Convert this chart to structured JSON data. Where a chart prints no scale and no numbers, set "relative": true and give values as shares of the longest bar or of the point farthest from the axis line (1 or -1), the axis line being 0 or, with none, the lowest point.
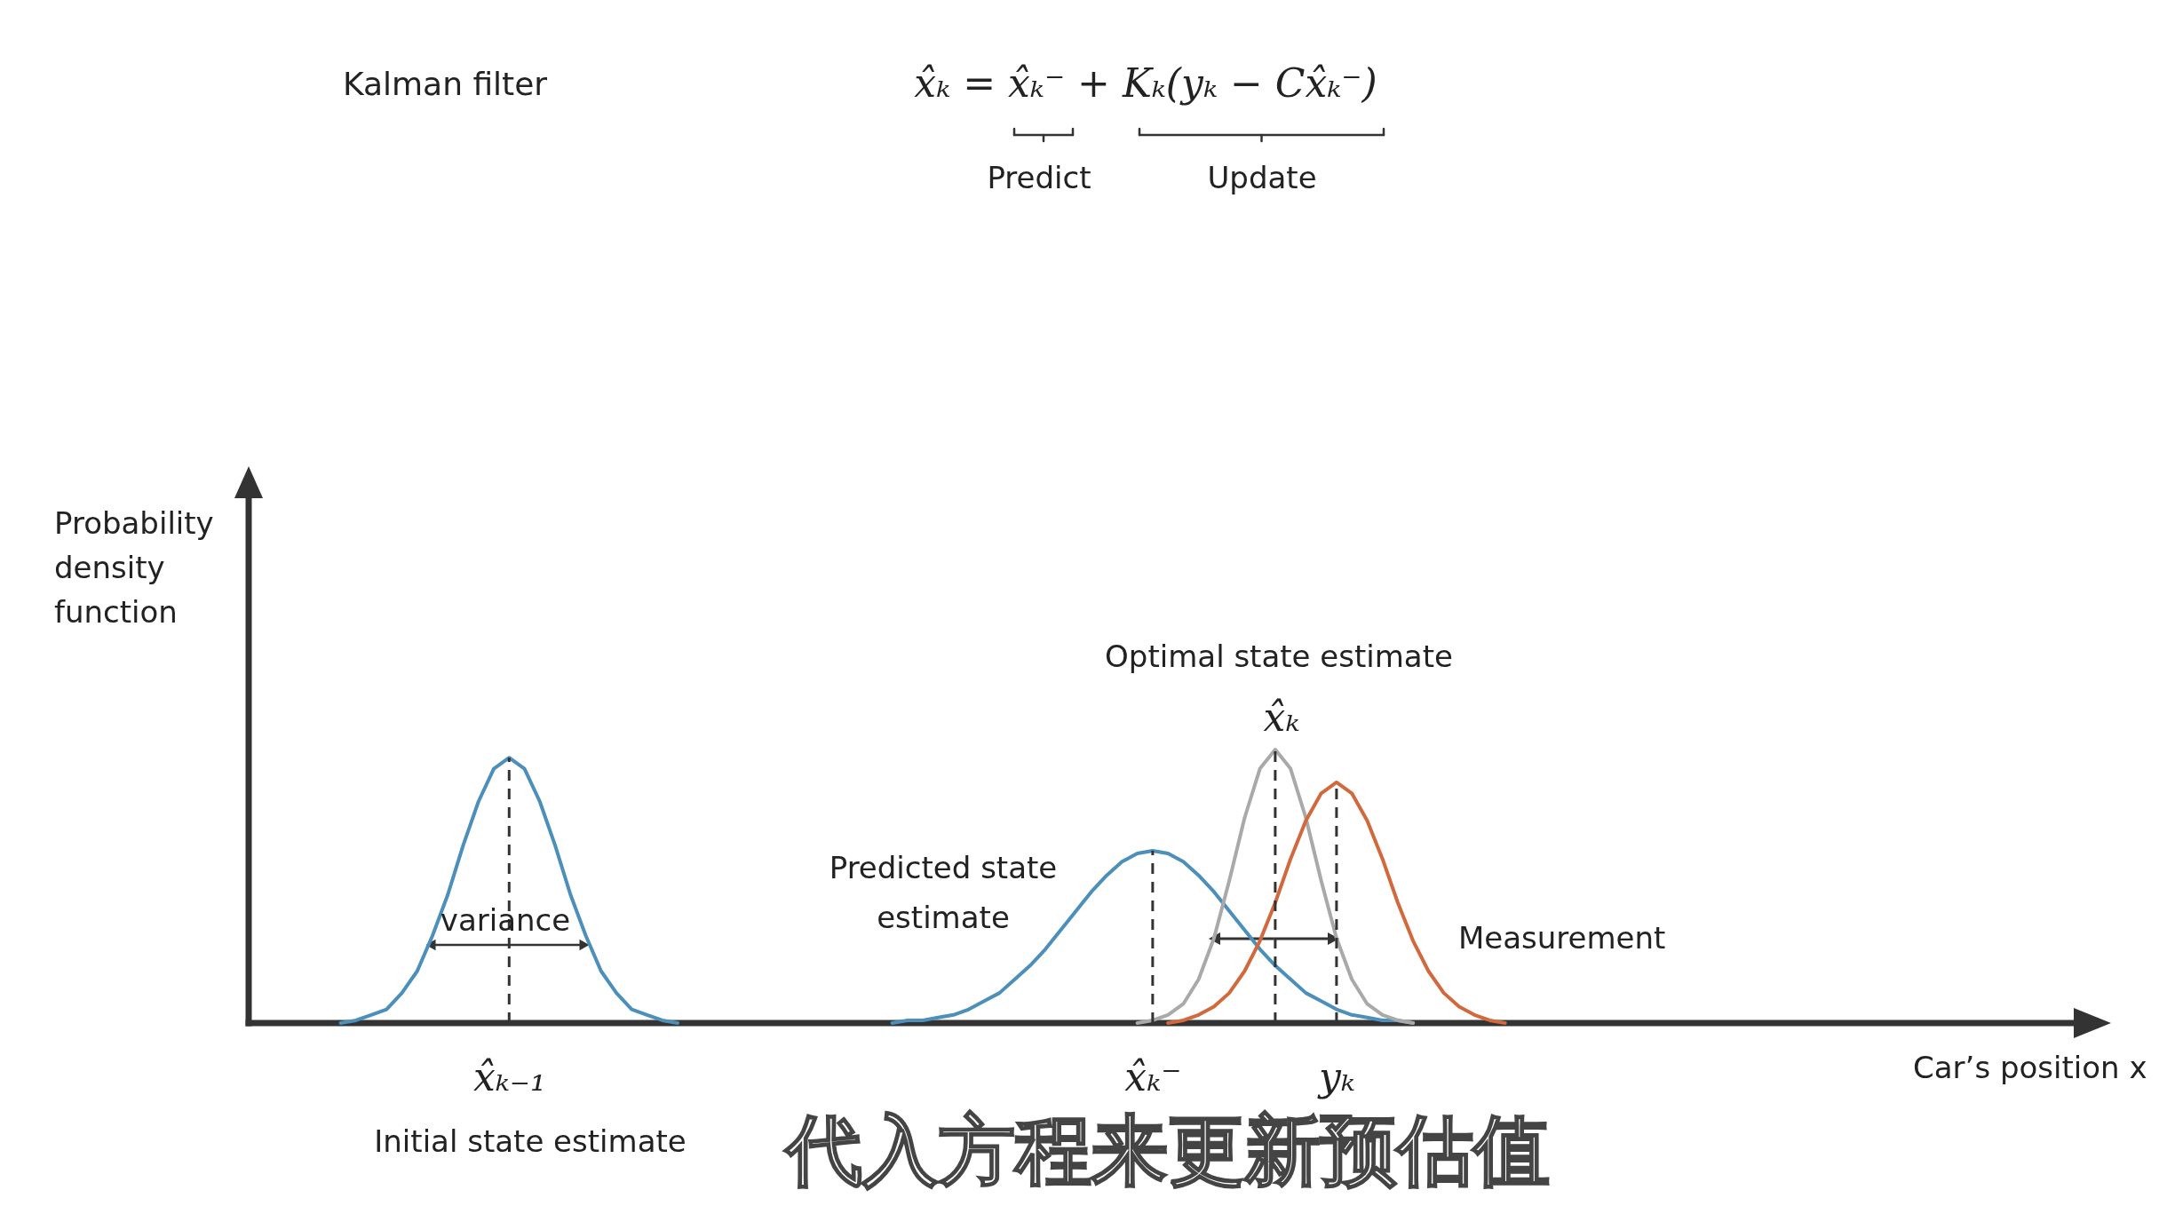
{
  "chart_data": {
    "type": "line",
    "title": "Kalman filter",
    "xlabel": "Car’s position x",
    "ylabel": "Probability density function",
    "relative": true,
    "tick_labels": "x",
    "categories": [
      null,
      null,
      null,
      null,
      null,
      null,
      null,
      null,
      null,
      null,
      null,
      null,
      null,
      null,
      null,
      null,
      null,
      "x̂ₖ₋₁",
      null,
      null,
      null,
      null,
      null,
      null,
      null,
      null,
      null,
      null,
      null,
      null,
      null,
      null,
      null,
      null,
      null,
      null,
      null,
      null,
      null,
      null,
      null,
      null,
      null,
      null,
      null,
      null,
      null,
      null,
      null,
      null,
      null,
      null,
      null,
      null,
      null,
      null,
      null,
      null,
      null,
      "x̂ₖ⁻",
      null,
      null,
      null,
      null,
      null,
      null,
      null,
      null,
      null,
      null,
      null,
      "yₖ",
      null,
      null,
      null,
      null,
      null,
      null,
      null,
      null,
      null,
      null,
      null,
      null,
      null,
      null,
      null,
      null,
      null,
      null,
      null,
      null,
      null,
      null,
      null,
      null,
      null,
      null,
      null,
      null,
      null,
      null,
      null,
      null,
      null,
      null,
      null,
      null,
      null,
      null,
      null,
      null,
      null,
      null,
      null,
      null,
      null,
      null,
      null,
      null
    ],
    "series": [
      {
        "color": "#4b8fba",
        "values": [
          null,
          null,
          null,
          null,
          null,
          null,
          0,
          0.01,
          0.03,
          0.05,
          0.11,
          0.19,
          0.32,
          0.47,
          0.65,
          0.81,
          0.93,
          0.97,
          0.93,
          0.81,
          0.65,
          0.47,
          0.32,
          0.19,
          0.11,
          0.05,
          0.03,
          0.01,
          0,
          null,
          null,
          null,
          null,
          null,
          null,
          null,
          null,
          null,
          null,
          null,
          null,
          null,
          null,
          null,
          null,
          null,
          null,
          null,
          null,
          null,
          null,
          null,
          null,
          null,
          null,
          null,
          null,
          null,
          null,
          null,
          null,
          null,
          null,
          null,
          null,
          null,
          null,
          null,
          null,
          null,
          null,
          null,
          null,
          null,
          null,
          null,
          null,
          null,
          null,
          null,
          null,
          null,
          null,
          null,
          null,
          null,
          null,
          null,
          null,
          null,
          null,
          null,
          null,
          null,
          null,
          null,
          null,
          null,
          null,
          null,
          null,
          null,
          null,
          null,
          null,
          null,
          null,
          null,
          null,
          null,
          null,
          null,
          null,
          null,
          null,
          null,
          null,
          null,
          null,
          null
        ]
      },
      {
        "name": "Predicted state estimate",
        "color": "#4b8fba",
        "values": [
          null,
          null,
          null,
          null,
          null,
          null,
          null,
          null,
          null,
          null,
          null,
          null,
          null,
          null,
          null,
          null,
          null,
          null,
          null,
          null,
          null,
          null,
          null,
          null,
          null,
          null,
          null,
          null,
          null,
          null,
          null,
          null,
          null,
          null,
          null,
          null,
          null,
          null,
          null,
          null,
          null,
          null,
          0,
          0.01,
          0.01,
          0.02,
          0.03,
          0.05,
          0.08,
          0.11,
          0.16,
          0.21,
          0.27,
          0.34,
          0.41,
          0.48,
          0.54,
          0.59,
          0.62,
          0.63,
          0.62,
          0.59,
          0.54,
          0.48,
          0.41,
          0.34,
          0.27,
          0.21,
          0.16,
          0.11,
          0.08,
          0.05,
          0.03,
          0.02,
          0.01,
          0.01,
          0,
          null,
          null,
          null,
          null,
          null,
          null,
          null,
          null,
          null,
          null,
          null,
          null,
          null,
          null,
          null,
          null,
          null,
          null,
          null,
          null,
          null,
          null,
          null,
          null,
          null,
          null,
          null,
          null,
          null,
          null,
          null,
          null,
          null,
          null,
          null,
          null,
          null,
          null,
          null,
          null,
          null,
          null,
          null
        ]
      },
      {
        "color": "#a9a9a9",
        "values": [
          null,
          null,
          null,
          null,
          null,
          null,
          null,
          null,
          null,
          null,
          null,
          null,
          null,
          null,
          null,
          null,
          null,
          null,
          null,
          null,
          null,
          null,
          null,
          null,
          null,
          null,
          null,
          null,
          null,
          null,
          null,
          null,
          null,
          null,
          null,
          null,
          null,
          null,
          null,
          null,
          null,
          null,
          null,
          null,
          null,
          null,
          null,
          null,
          null,
          null,
          null,
          null,
          null,
          null,
          null,
          null,
          null,
          null,
          0,
          0.01,
          0.03,
          0.07,
          0.16,
          0.31,
          0.52,
          0.75,
          0.93,
          1,
          0.93,
          0.75,
          0.52,
          0.31,
          0.16,
          0.07,
          0.03,
          0.01,
          0,
          null,
          null,
          null,
          null,
          null,
          null,
          null,
          null,
          null,
          null,
          null,
          null,
          null,
          null,
          null,
          null,
          null,
          null,
          null,
          null,
          null,
          null,
          null,
          null,
          null,
          null,
          null,
          null,
          null,
          null,
          null,
          null,
          null,
          null,
          null,
          null,
          null,
          null,
          null,
          null,
          null,
          null,
          null
        ]
      },
      {
        "name": "Measurement",
        "color": "#d2693c",
        "values": [
          null,
          null,
          null,
          null,
          null,
          null,
          null,
          null,
          null,
          null,
          null,
          null,
          null,
          null,
          null,
          null,
          null,
          null,
          null,
          null,
          null,
          null,
          null,
          null,
          null,
          null,
          null,
          null,
          null,
          null,
          null,
          null,
          null,
          null,
          null,
          null,
          null,
          null,
          null,
          null,
          null,
          null,
          null,
          null,
          null,
          null,
          null,
          null,
          null,
          null,
          null,
          null,
          null,
          null,
          null,
          null,
          null,
          null,
          null,
          null,
          0,
          0.01,
          0.03,
          0.06,
          0.11,
          0.19,
          0.3,
          0.44,
          0.6,
          0.74,
          0.84,
          0.88,
          0.84,
          0.74,
          0.6,
          0.44,
          0.3,
          0.19,
          0.11,
          0.06,
          0.03,
          0.01,
          0,
          null,
          null,
          null,
          null,
          null,
          null,
          null,
          null,
          null,
          null,
          null,
          null,
          null,
          null,
          null,
          null,
          null,
          null,
          null,
          null,
          null,
          null,
          null,
          null,
          null,
          null,
          null,
          null,
          null,
          null,
          null,
          null,
          null,
          null,
          null,
          null,
          null
        ]
      }
    ],
    "ref_lines": [
      {
        "axis": "x",
        "value": "x̂ₖ₋₁",
        "color": "#333333",
        "line_style": "dashed"
      },
      {
        "axis": "x",
        "value": "x̂ₖ⁻",
        "color": "#333333",
        "line_style": "dashed"
      },
      {
        "axis": "x",
        "value": "yₖ",
        "color": "#333333",
        "line_style": "dashed"
      }
    ],
    "annotations": [
      "x̂ₖ = x̂ₖ⁻ + Kₖ(yₖ − Cx̂ₖ⁻)",
      "Predict",
      "Update",
      "Optimal state estimate",
      "x̂ₖ",
      "variance",
      "Initial state estimate",
      "代入方程来更新预估值"
    ]
  }
}
